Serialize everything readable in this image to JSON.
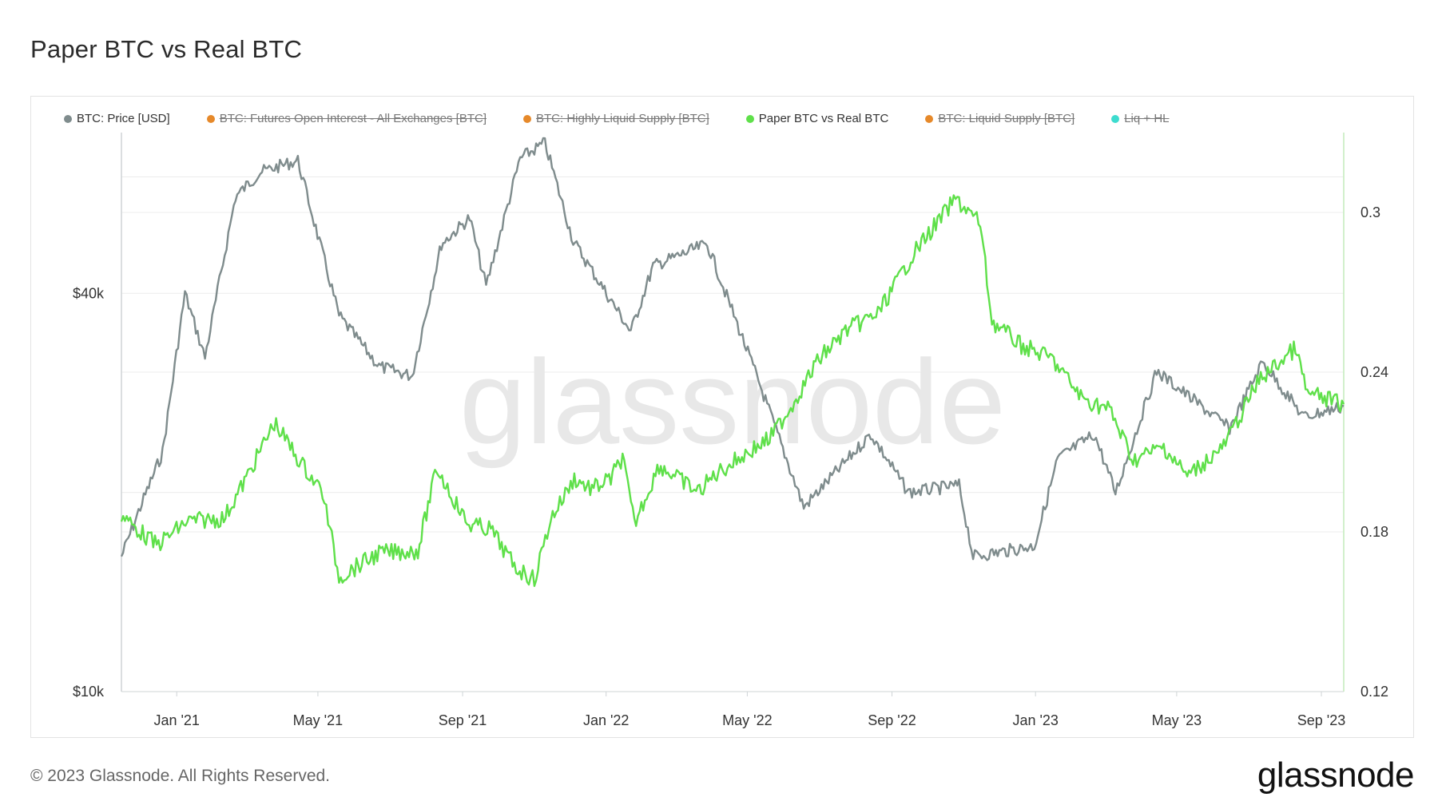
{
  "title": "Paper BTC vs Real BTC",
  "legend": [
    {
      "label": "BTC: Price [USD]",
      "color": "#7f8c8d",
      "active": true
    },
    {
      "label": "BTC: Futures Open Interest - All Exchanges [BTC]",
      "color": "#e6892a",
      "active": false
    },
    {
      "label": "BTC: Highly Liquid Supply [BTC]",
      "color": "#e6892a",
      "active": false
    },
    {
      "label": "Paper BTC vs Real BTC",
      "color": "#5fe04a",
      "active": true
    },
    {
      "label": "BTC: Liquid Supply [BTC]",
      "color": "#e6892a",
      "active": false
    },
    {
      "label": "Liq + HL",
      "color": "#3ddccf",
      "active": false
    }
  ],
  "watermark": "glassnode",
  "footer": {
    "copyright": "© 2023 Glassnode. All Rights Reserved.",
    "logo": "glassnode"
  },
  "chart_data": {
    "type": "line",
    "x_ticks": [
      "Jan '21",
      "May '21",
      "Sep '21",
      "Jan '22",
      "May '22",
      "Sep '22",
      "Jan '23",
      "May '23",
      "Sep '23"
    ],
    "x_range": [
      "2020-11-15",
      "2023-09-20"
    ],
    "y_left": {
      "scale": "log",
      "ticks": [
        "$10k",
        "$40k"
      ],
      "tick_values": [
        10000,
        40000
      ],
      "range": [
        10000,
        70000
      ]
    },
    "y_right": {
      "scale": "linear",
      "ticks": [
        "0.12",
        "0.18",
        "0.24",
        "0.3"
      ],
      "tick_values": [
        0.12,
        0.18,
        0.24,
        0.3
      ],
      "range": [
        0.12,
        0.33
      ]
    },
    "grid": true,
    "legend_position": "top-left",
    "series": [
      {
        "name": "BTC: Price [USD]",
        "axis": "left",
        "color": "#7f8c8d",
        "points": [
          [
            "2020-11-15",
            16000
          ],
          [
            "2020-12-01",
            19000
          ],
          [
            "2020-12-20",
            23000
          ],
          [
            "2021-01-08",
            40000
          ],
          [
            "2021-01-25",
            32000
          ],
          [
            "2021-02-20",
            56000
          ],
          [
            "2021-03-13",
            61000
          ],
          [
            "2021-04-14",
            63500
          ],
          [
            "2021-05-19",
            37000
          ],
          [
            "2021-06-22",
            31000
          ],
          [
            "2021-07-20",
            30000
          ],
          [
            "2021-08-14",
            47500
          ],
          [
            "2021-09-07",
            52000
          ],
          [
            "2021-09-21",
            41000
          ],
          [
            "2021-10-20",
            64000
          ],
          [
            "2021-11-10",
            67500
          ],
          [
            "2021-12-04",
            48000
          ],
          [
            "2022-01-22",
            35000
          ],
          [
            "2022-02-10",
            44000
          ],
          [
            "2022-03-28",
            47500
          ],
          [
            "2022-05-12",
            29000
          ],
          [
            "2022-06-18",
            19000
          ],
          [
            "2022-08-14",
            24500
          ],
          [
            "2022-09-15",
            20000
          ],
          [
            "2022-10-28",
            20500
          ],
          [
            "2022-11-09",
            16000
          ],
          [
            "2022-12-31",
            16600
          ],
          [
            "2023-01-20",
            22500
          ],
          [
            "2023-02-20",
            24500
          ],
          [
            "2023-03-10",
            20000
          ],
          [
            "2023-04-14",
            30500
          ],
          [
            "2023-06-15",
            25000
          ],
          [
            "2023-07-13",
            31500
          ],
          [
            "2023-08-17",
            26000
          ],
          [
            "2023-09-20",
            27000
          ]
        ]
      },
      {
        "name": "Paper BTC vs Real BTC",
        "axis": "right",
        "color": "#5fe04a",
        "points": [
          [
            "2020-11-15",
            0.186
          ],
          [
            "2020-12-15",
            0.175
          ],
          [
            "2021-01-10",
            0.184
          ],
          [
            "2021-02-10",
            0.185
          ],
          [
            "2021-03-01",
            0.2
          ],
          [
            "2021-03-25",
            0.221
          ],
          [
            "2021-04-18",
            0.205
          ],
          [
            "2021-05-05",
            0.195
          ],
          [
            "2021-05-19",
            0.163
          ],
          [
            "2021-06-22",
            0.172
          ],
          [
            "2021-07-25",
            0.173
          ],
          [
            "2021-08-10",
            0.204
          ],
          [
            "2021-09-05",
            0.183
          ],
          [
            "2021-09-25",
            0.181
          ],
          [
            "2021-10-15",
            0.167
          ],
          [
            "2021-11-01",
            0.162
          ],
          [
            "2021-11-15",
            0.185
          ],
          [
            "2021-12-05",
            0.2
          ],
          [
            "2021-12-20",
            0.196
          ],
          [
            "2022-01-05",
            0.2
          ],
          [
            "2022-01-15",
            0.208
          ],
          [
            "2022-01-25",
            0.183
          ],
          [
            "2022-02-15",
            0.205
          ],
          [
            "2022-03-20",
            0.195
          ],
          [
            "2022-04-05",
            0.202
          ],
          [
            "2022-04-25",
            0.208
          ],
          [
            "2022-05-20",
            0.215
          ],
          [
            "2022-06-10",
            0.229
          ],
          [
            "2022-07-01",
            0.245
          ],
          [
            "2022-07-25",
            0.256
          ],
          [
            "2022-08-20",
            0.262
          ],
          [
            "2022-09-20",
            0.285
          ],
          [
            "2022-10-25",
            0.305
          ],
          [
            "2022-11-15",
            0.296
          ],
          [
            "2022-11-25",
            0.259
          ],
          [
            "2022-12-20",
            0.25
          ],
          [
            "2023-01-15",
            0.245
          ],
          [
            "2023-02-10",
            0.23
          ],
          [
            "2023-03-05",
            0.226
          ],
          [
            "2023-03-25",
            0.207
          ],
          [
            "2023-04-20",
            0.212
          ],
          [
            "2023-05-10",
            0.201
          ],
          [
            "2023-06-10",
            0.212
          ],
          [
            "2023-07-10",
            0.237
          ],
          [
            "2023-08-10",
            0.249
          ],
          [
            "2023-08-20",
            0.232
          ],
          [
            "2023-09-20",
            0.228
          ]
        ]
      }
    ]
  }
}
